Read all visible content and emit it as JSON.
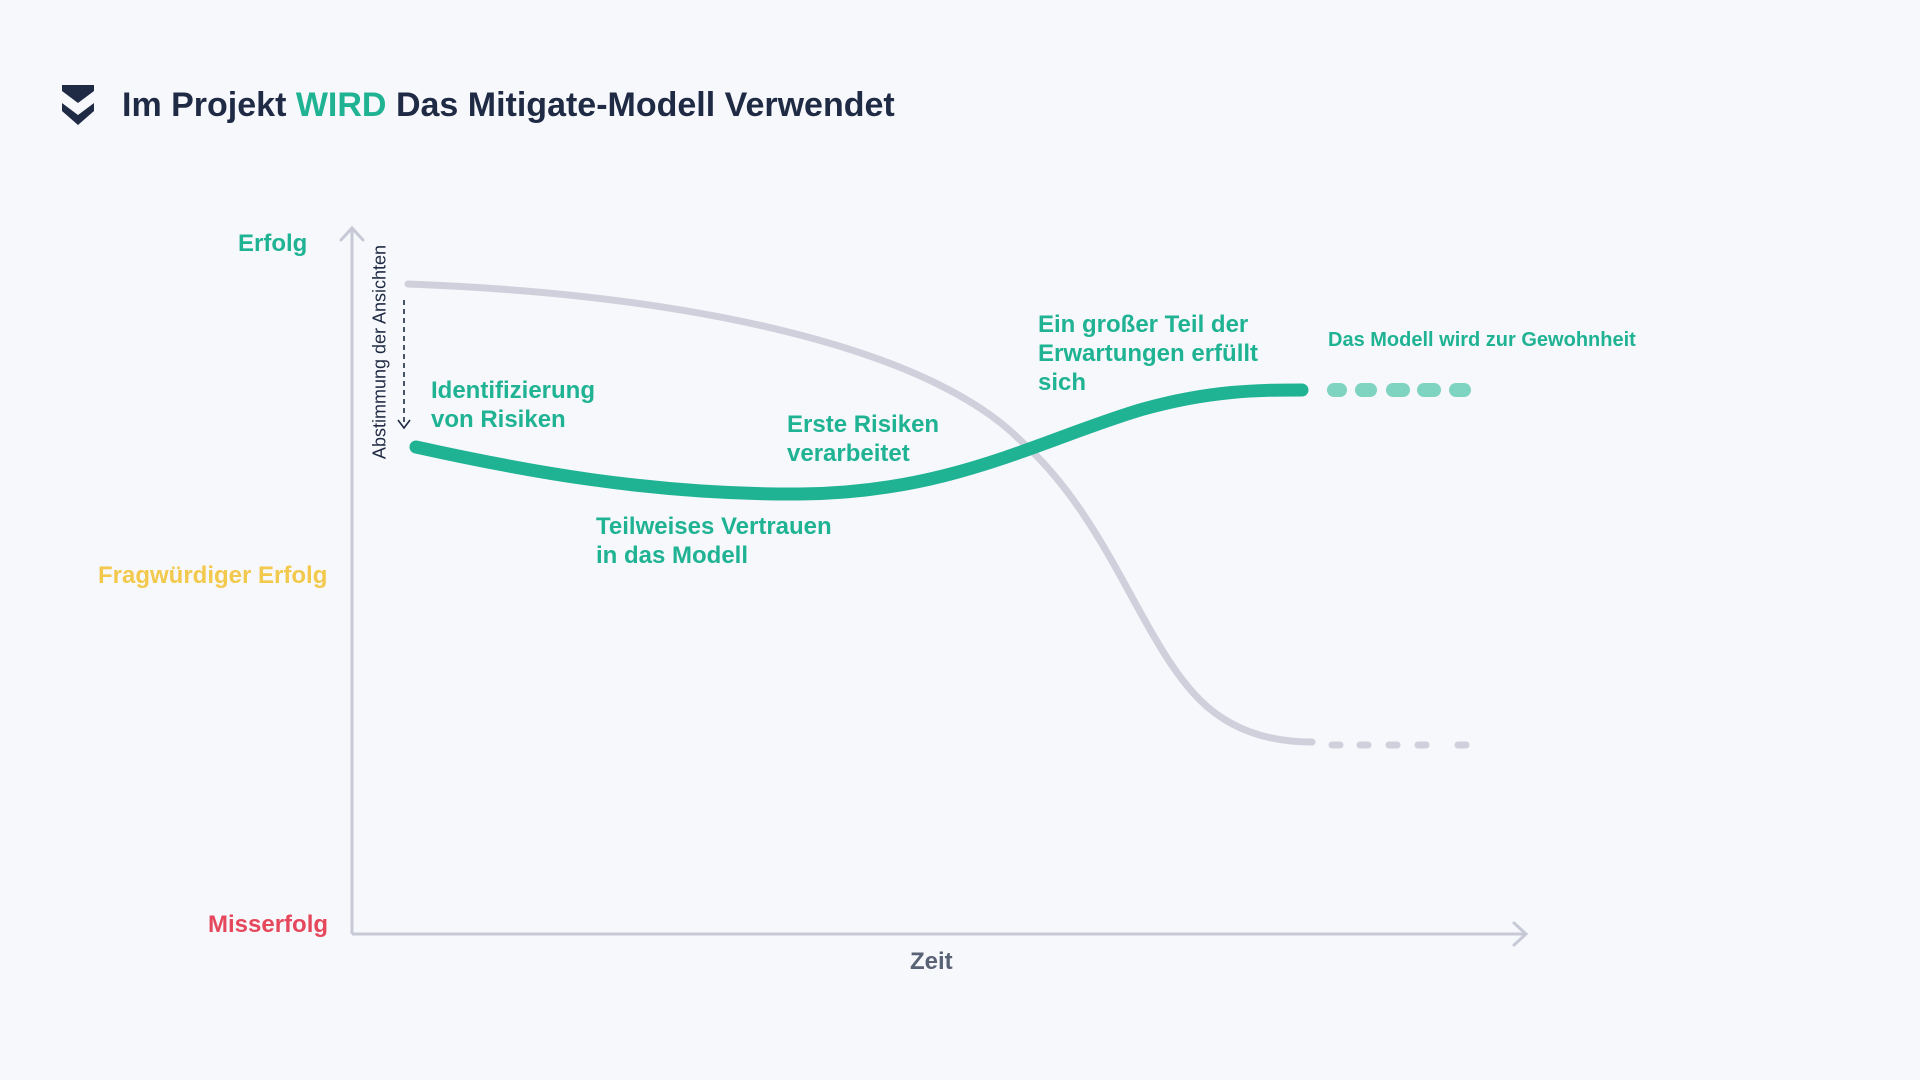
{
  "header": {
    "title_part1": "Im Projekt ",
    "title_accent": "WIRD",
    "title_part2": " Das Mitigate-Modell Verwendet",
    "logo_icon": "double-chevron-down-icon"
  },
  "y_axis": {
    "top_label": "Erfolg",
    "middle_label": "Fragwürdiger Erfolg",
    "bottom_label": "Misserfolg"
  },
  "x_axis": {
    "label": "Zeit"
  },
  "alignment_label": "Abstimmung der Ansichten",
  "annotations": {
    "identification": [
      "Identifizierung",
      "von Risiken"
    ],
    "partial_trust": [
      "Teilweises Vertrauen",
      "in das Modell"
    ],
    "first_risks": [
      "Erste Risiken",
      "verarbeitet"
    ],
    "expectations": [
      "Ein großer Teil der",
      "Erwartungen erfüllt",
      "sich"
    ],
    "habit": "Das Modell wird zur Gewohnheit"
  },
  "colors": {
    "accent": "#1fb394",
    "accent_light": "#7fd3c1",
    "grey_curve": "#cfd0dc",
    "success": "#1fb394",
    "questionable": "#f2c94c",
    "failure": "#e5485c",
    "title": "#1f2a44",
    "axis": "#c7c9d6"
  }
}
